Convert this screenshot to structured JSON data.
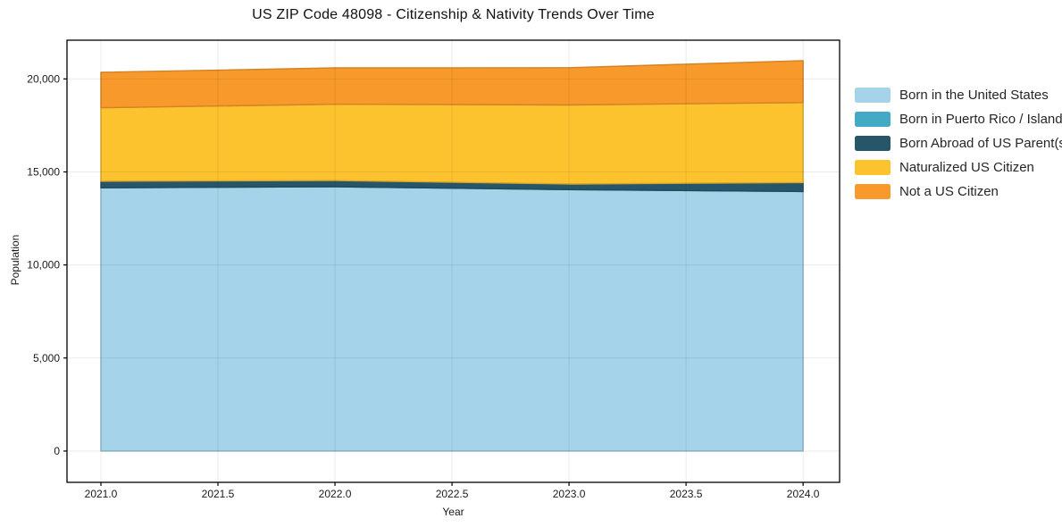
{
  "figure": {
    "background": "#ffffff"
  },
  "chart_data": {
    "type": "area",
    "stacked": true,
    "title": "US ZIP Code 48098 - Citizenship & Nativity Trends Over Time",
    "xlabel": "Year",
    "ylabel": "Population",
    "x": [
      2021,
      2022,
      2023,
      2024
    ],
    "series": [
      {
        "name": "Born in the United States",
        "color": "#a5d3ea",
        "values": [
          14150,
          14200,
          14050,
          13950
        ]
      },
      {
        "name": "Born in Puerto Rico / Islands",
        "color": "#43aac6",
        "values": [
          0,
          0,
          0,
          0
        ]
      },
      {
        "name": "Born Abroad of US Parent(s)",
        "color": "#27566a",
        "values": [
          350,
          340,
          300,
          480
        ]
      },
      {
        "name": "Naturalized US Citizen",
        "color": "#fdc32f",
        "values": [
          3950,
          4100,
          4250,
          4300
        ]
      },
      {
        "name": "Not a US Citizen",
        "color": "#f8992b",
        "values": [
          1900,
          1950,
          2000,
          2250
        ]
      }
    ],
    "stacked_totals": [
      20350,
      20590,
      20600,
      20980
    ],
    "xlim": [
      2020.855,
      2024.156
    ],
    "ylim": [
      -1683,
      22080
    ],
    "xticks": {
      "values": [
        2021.0,
        2021.5,
        2022.0,
        2022.5,
        2023.0,
        2023.5,
        2024.0
      ],
      "labels": [
        "2021.0",
        "2021.5",
        "2022.0",
        "2022.5",
        "2023.0",
        "2023.5",
        "2024.0"
      ]
    },
    "yticks": {
      "values": [
        0,
        5000,
        10000,
        15000,
        20000
      ],
      "labels": [
        "0",
        "5,000",
        "10,000",
        "15,000",
        "20,000"
      ]
    },
    "grid": true,
    "legend_position": "right-outside"
  }
}
